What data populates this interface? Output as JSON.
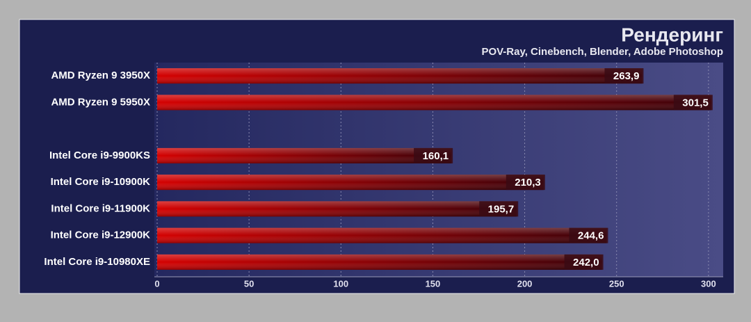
{
  "chart_data": {
    "type": "bar",
    "orientation": "horizontal",
    "title": "Рендеринг",
    "subtitle": "POV-Ray, Cinebench, Blender, Adobe Photoshop",
    "categories": [
      "AMD Ryzen 9 3950X",
      "AMD Ryzen 9 5950X",
      null,
      "Intel Core i9-9900KS",
      "Intel Core i9-10900K",
      "Intel Core i9-11900K",
      "Intel Core i9-12900K",
      "Intel Core i9-10980XE"
    ],
    "values": [
      263.9,
      301.5,
      null,
      160.1,
      210.3,
      195.7,
      244.6,
      242.0
    ],
    "value_labels": [
      "263,9",
      "301,5",
      null,
      "160,1",
      "210,3",
      "195,7",
      "244,6",
      "242,0"
    ],
    "color": "#c00000",
    "xlim": [
      0,
      308
    ],
    "xticks": [
      0,
      50,
      100,
      150,
      200,
      250,
      300
    ],
    "grid": true
  }
}
